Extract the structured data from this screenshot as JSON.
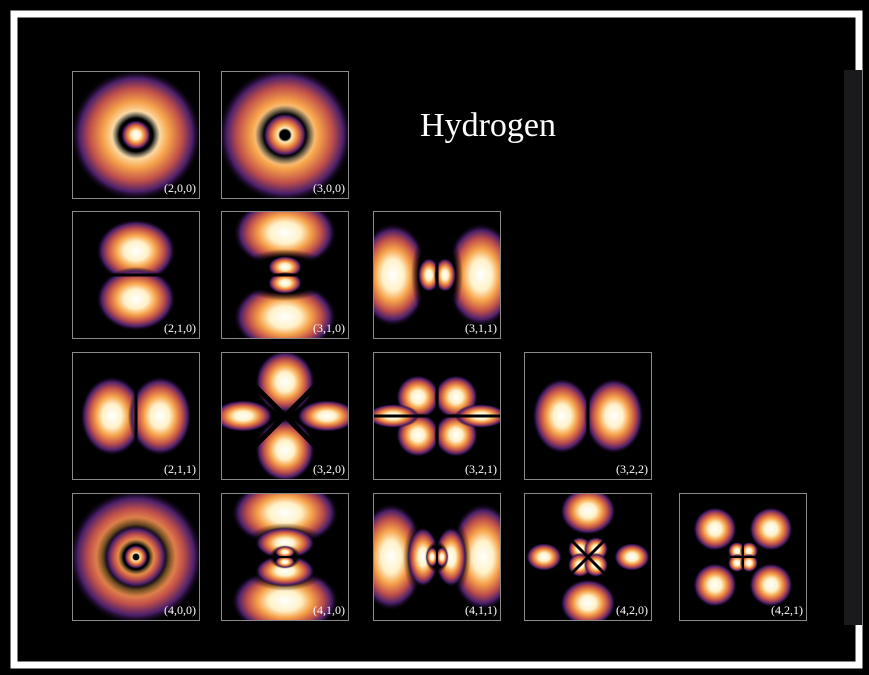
{
  "title": "Hydrogen",
  "orbitals": [
    "(2,0,0)",
    "(3,0,0)",
    "(2,1,0)",
    "(3,1,0)",
    "(3,1,1)",
    "(2,1,1)",
    "(3,2,0)",
    "(3,2,1)",
    "(3,2,2)",
    "(4,0,0)",
    "(4,1,0)",
    "(4,1,1)",
    "(4,2,0)",
    "(4,2,1)"
  ]
}
